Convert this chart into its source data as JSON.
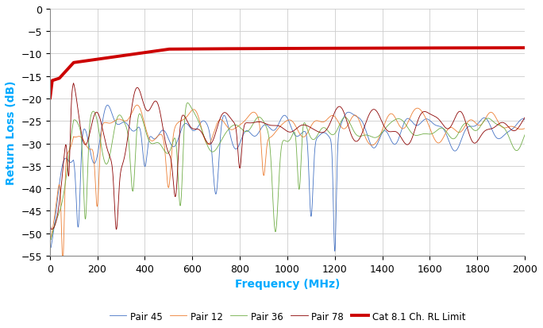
{
  "title": "",
  "xlabel": "Frequency (MHz)",
  "ylabel": "Return Loss (dB)",
  "xlim": [
    0,
    2000
  ],
  "ylim": [
    -55,
    0
  ],
  "yticks": [
    0,
    -5,
    -10,
    -15,
    -20,
    -25,
    -30,
    -35,
    -40,
    -45,
    -50,
    -55
  ],
  "xticks": [
    0,
    200,
    400,
    600,
    800,
    1000,
    1200,
    1400,
    1600,
    1800,
    2000
  ],
  "xlabel_color": "#00aaff",
  "ylabel_color": "#00aaff",
  "grid_color": "#cccccc",
  "bg_color": "#ffffff",
  "line_colors": {
    "pair45": "#4472c4",
    "pair12": "#ed7d31",
    "pair36": "#70ad47",
    "pair78": "#8b0000",
    "limit": "#cc0000"
  },
  "legend": {
    "pair45": "Pair 45",
    "pair12": "Pair 12",
    "pair36": "Pair 36",
    "pair78": "Pair 78",
    "limit": "Cat 8.1 Ch. RL Limit"
  }
}
